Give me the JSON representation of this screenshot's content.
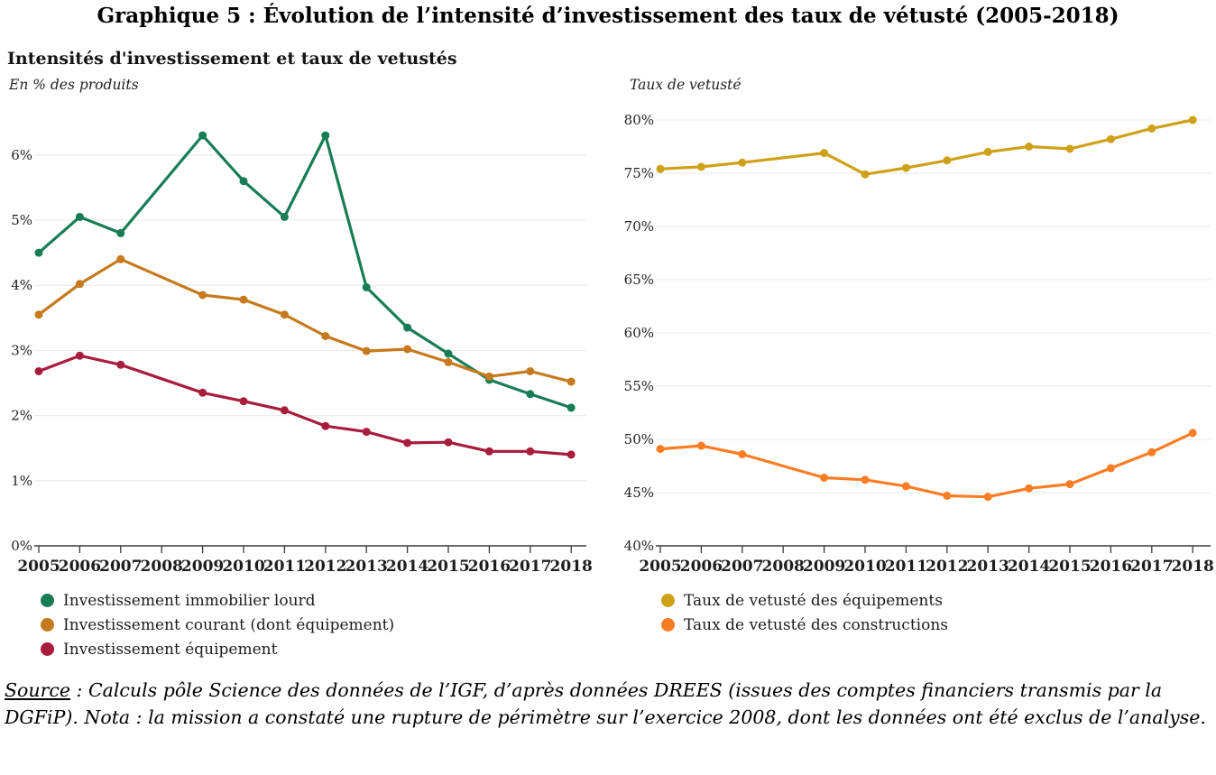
{
  "page_title": "Graphique 5 : Évolution de l’intensité d’investissement des taux de vétusté (2005-2018)",
  "source": {
    "label": "Source",
    "text": " : Calculs pôle Science des données de l’IGF, d’après données DREES (issues des comptes financiers transmis par la DGFiP). Nota : la mission a constaté une rupture de périmètre sur l’exercice 2008, dont les données ont été exclus de l’analyse."
  },
  "chart_data": [
    {
      "type": "line",
      "title": "Intensités d'investissement et taux de vetustés",
      "subtitle": "En % des produits",
      "x": [
        "2005",
        "2006",
        "2007",
        "2008",
        "2009",
        "2010",
        "2011",
        "2012",
        "2013",
        "2014",
        "2015",
        "2016",
        "2017",
        "2018"
      ],
      "note": "2008 values excluded (perimeter break) — lines connect 2007 directly to 2009",
      "ylim": [
        0,
        6.6
      ],
      "ytick_values": [
        0,
        1,
        2,
        3,
        4,
        5,
        6
      ],
      "ytick_labels": [
        "0%",
        "1%",
        "2%",
        "3%",
        "4%",
        "5%",
        "6%"
      ],
      "grid": "horizontal",
      "legend_position": "bottom-left",
      "series": [
        {
          "name": "Investissement immobilier lourd",
          "color": "#187d55",
          "values": [
            4.5,
            5.05,
            4.8,
            null,
            6.3,
            5.6,
            5.05,
            6.3,
            3.97,
            3.35,
            2.95,
            2.55,
            2.33,
            2.12
          ]
        },
        {
          "name": "Investissement courant (dont équipement)",
          "color": "#c67a1d",
          "values": [
            3.55,
            4.02,
            4.4,
            null,
            3.85,
            3.78,
            3.55,
            3.22,
            2.99,
            3.02,
            2.82,
            2.6,
            2.68,
            2.52
          ]
        },
        {
          "name": "Investissement équipement",
          "color": "#a81d3d",
          "values": [
            2.68,
            2.92,
            2.78,
            null,
            2.35,
            2.22,
            2.08,
            1.84,
            1.75,
            1.58,
            1.59,
            1.45,
            1.45,
            1.4
          ]
        }
      ]
    },
    {
      "type": "line",
      "title": "",
      "subtitle": "Taux de vetusté",
      "x": [
        "2005",
        "2006",
        "2007",
        "2008",
        "2009",
        "2010",
        "2011",
        "2012",
        "2013",
        "2014",
        "2015",
        "2016",
        "2017",
        "2018"
      ],
      "note": "2008 values excluded (perimeter break) — lines connect 2007 directly to 2009",
      "ylim": [
        40,
        81.5
      ],
      "ytick_values": [
        40,
        45,
        50,
        55,
        60,
        65,
        70,
        75,
        80
      ],
      "ytick_labels": [
        "40%",
        "45%",
        "50%",
        "55%",
        "60%",
        "65%",
        "70%",
        "75%",
        "80%"
      ],
      "grid": "horizontal",
      "legend_position": "bottom-left",
      "series": [
        {
          "name": "Taux de vetusté des équipements",
          "color": "#cfa118",
          "values": [
            75.4,
            75.6,
            76.0,
            null,
            76.9,
            74.9,
            75.5,
            76.2,
            77.0,
            77.5,
            77.3,
            78.2,
            79.2,
            80.0
          ]
        },
        {
          "name": "Taux de vetusté des constructions",
          "color": "#f97d25",
          "values": [
            49.1,
            49.4,
            48.6,
            null,
            46.4,
            46.2,
            45.6,
            44.7,
            44.6,
            45.4,
            45.8,
            47.3,
            48.8,
            50.6
          ]
        }
      ]
    }
  ]
}
